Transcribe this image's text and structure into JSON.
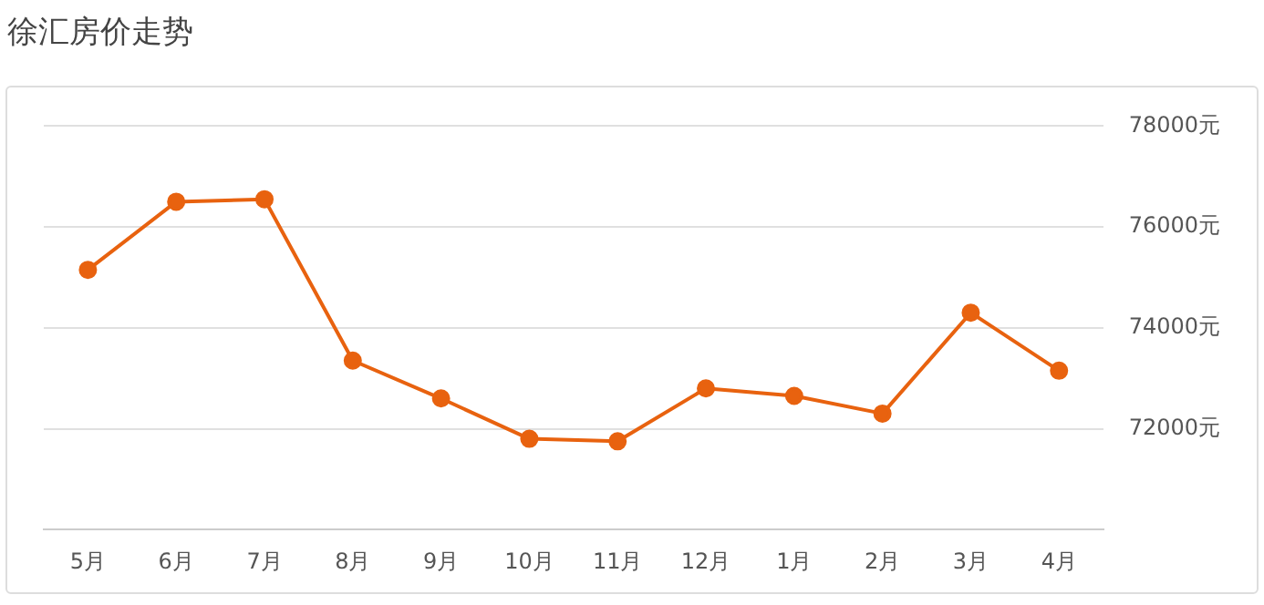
{
  "chart_data": {
    "type": "line",
    "title": "徐汇房价走势",
    "categories": [
      "5月",
      "6月",
      "7月",
      "8月",
      "9月",
      "10月",
      "11月",
      "12月",
      "1月",
      "2月",
      "3月",
      "4月"
    ],
    "series": [
      {
        "color": "#e8620f",
        "values": [
          75150,
          76500,
          76550,
          73350,
          72600,
          71800,
          71750,
          72800,
          72650,
          72300,
          74300,
          73150
        ]
      }
    ],
    "ylim": [
      70000,
      78000
    ],
    "yticks": [
      {
        "value": 72000,
        "label": "72000元"
      },
      {
        "value": 74000,
        "label": "74000元"
      },
      {
        "value": 76000,
        "label": "76000元"
      },
      {
        "value": 78000,
        "label": "78000元"
      }
    ],
    "grid": "y",
    "legend": false,
    "marker": "circle",
    "line_style": "solid"
  }
}
